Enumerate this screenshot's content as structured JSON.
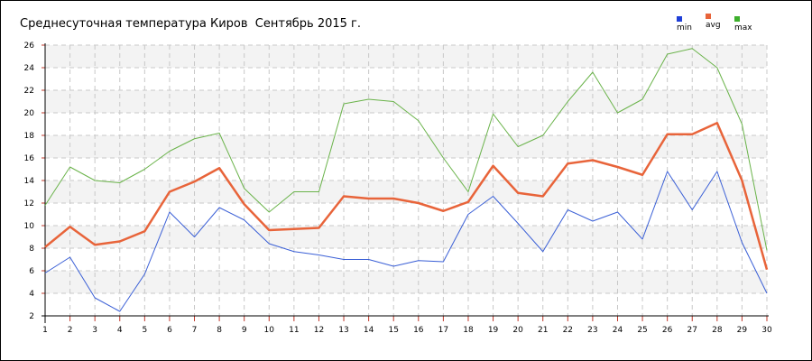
{
  "chart_data": {
    "type": "line",
    "title": "Среднесуточная температура Киров  Сентябрь 2015 г.",
    "xlabel": "",
    "ylabel": "",
    "x": [
      1,
      2,
      3,
      4,
      5,
      6,
      7,
      8,
      9,
      10,
      11,
      12,
      13,
      14,
      15,
      16,
      17,
      18,
      19,
      20,
      21,
      22,
      23,
      24,
      25,
      26,
      27,
      28,
      29,
      30
    ],
    "ylim": [
      2,
      26
    ],
    "yticks": [
      2,
      4,
      6,
      8,
      10,
      12,
      14,
      16,
      18,
      20,
      22,
      24,
      26
    ],
    "grid": true,
    "legend_position": "top-right",
    "series": [
      {
        "name": "min",
        "color": "#3a5fd6",
        "values": [
          5.8,
          7.2,
          3.6,
          2.4,
          5.7,
          11.2,
          9.0,
          11.6,
          10.5,
          8.4,
          7.7,
          7.4,
          7.0,
          7.0,
          6.4,
          6.9,
          6.8,
          11.0,
          12.6,
          10.2,
          7.7,
          11.4,
          10.4,
          11.2,
          8.8,
          14.8,
          11.4,
          14.8,
          8.5,
          4.0
        ]
      },
      {
        "name": "avg",
        "color": "#e8643a",
        "values": [
          8.1,
          9.9,
          8.3,
          8.6,
          9.5,
          13.0,
          13.9,
          15.1,
          11.9,
          9.6,
          9.7,
          9.8,
          12.6,
          12.4,
          12.4,
          12.0,
          11.3,
          12.1,
          15.3,
          12.9,
          12.6,
          15.5,
          15.8,
          15.2,
          14.5,
          18.1,
          18.1,
          19.1,
          14.0,
          6.1
        ]
      },
      {
        "name": "max",
        "color": "#6ab34a",
        "values": [
          11.8,
          15.2,
          14.0,
          13.8,
          15.0,
          16.6,
          17.7,
          18.2,
          13.3,
          11.2,
          13.0,
          13.0,
          20.8,
          21.2,
          21.0,
          19.3,
          16.0,
          13.0,
          19.9,
          17.0,
          18.0,
          21.0,
          23.6,
          20.0,
          21.2,
          25.2,
          25.7,
          24.0,
          19.0,
          7.8
        ]
      }
    ]
  }
}
